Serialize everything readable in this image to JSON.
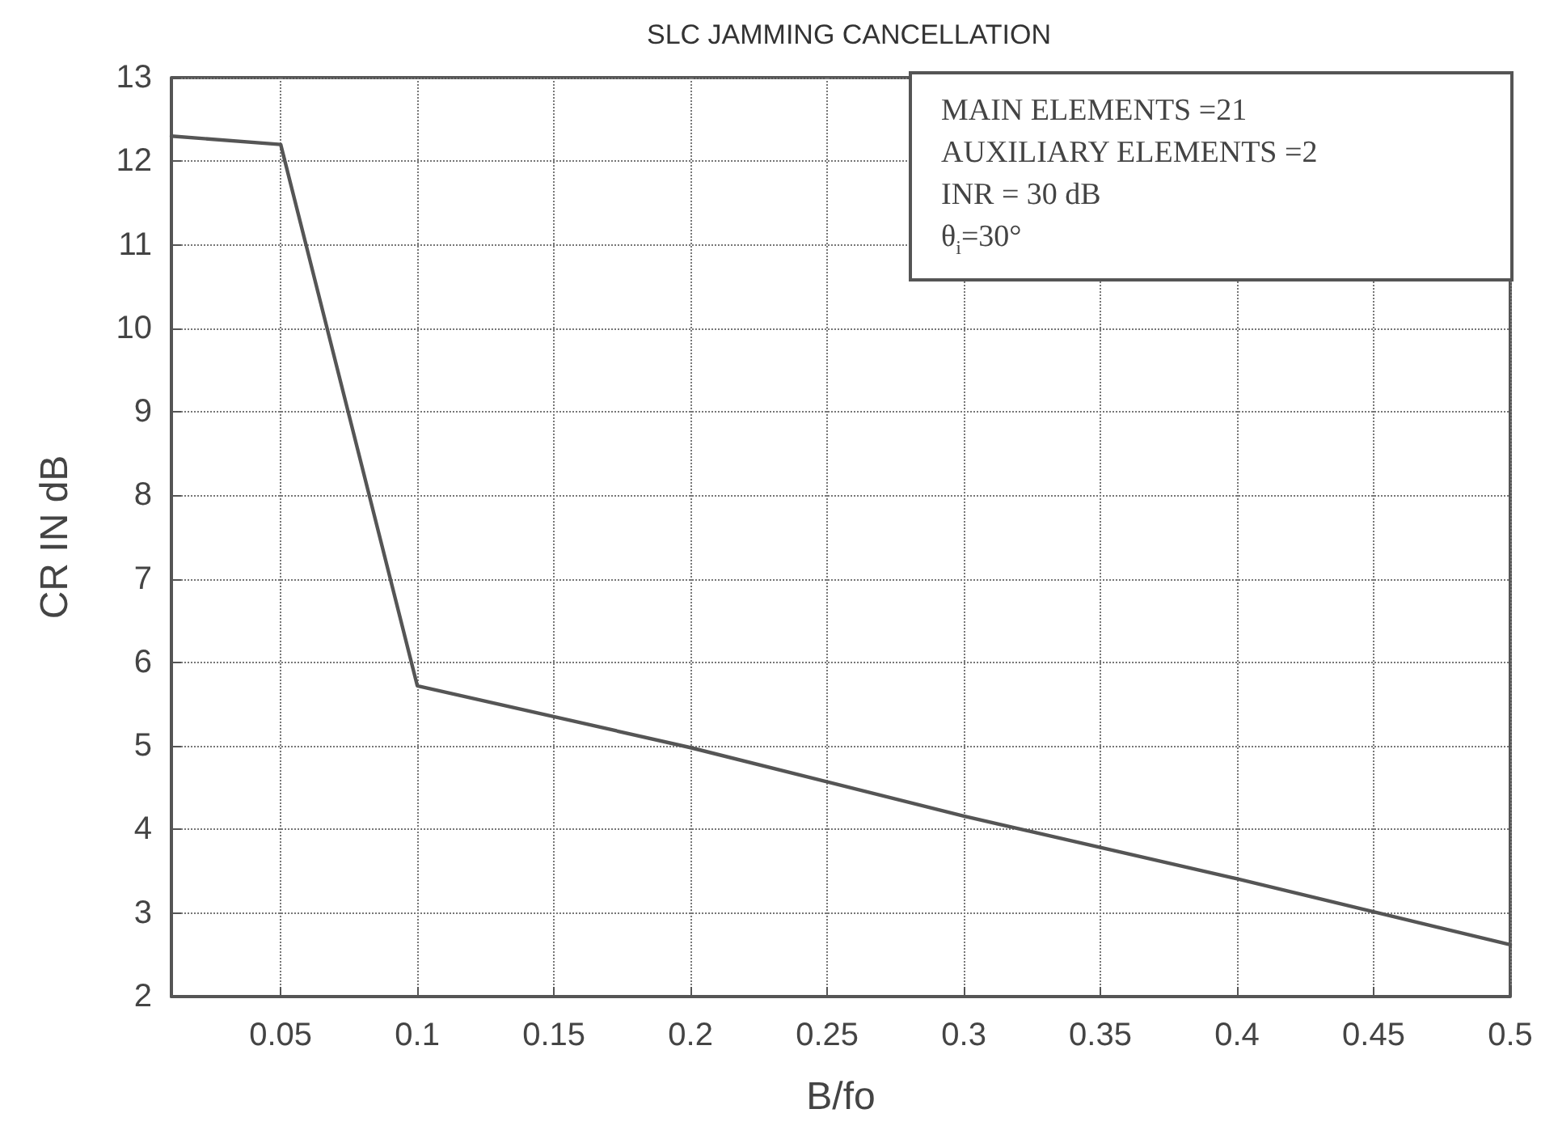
{
  "chart_data": {
    "type": "line",
    "title": "SLC JAMMING CANCELLATION",
    "xlabel": "B/fo",
    "ylabel": "CR IN dB",
    "annotations": [
      "MAIN ELEMENTS =21",
      "AUXILIARY ELEMENTS =2",
      "INR = 30 dB",
      "θ$_{i}$=30°"
    ],
    "x": [
      0.01,
      0.05,
      0.1,
      0.2,
      0.3,
      0.4,
      0.5
    ],
    "series": [
      {
        "color": "#555555",
        "values": [
          12.3,
          12.2,
          5.72,
          4.98,
          4.16,
          3.41,
          2.62
        ]
      }
    ],
    "xlim": [
      0.01,
      0.5
    ],
    "xticks": [
      0.05,
      0.1,
      0.15,
      0.2,
      0.25,
      0.3,
      0.35,
      0.4,
      0.45,
      0.5
    ],
    "ylim": [
      2,
      13
    ],
    "yticks": [
      2,
      3,
      4,
      5,
      6,
      7,
      8,
      9,
      10,
      11,
      12,
      13
    ],
    "grid": true,
    "marker": "none",
    "line_style": "solid"
  }
}
